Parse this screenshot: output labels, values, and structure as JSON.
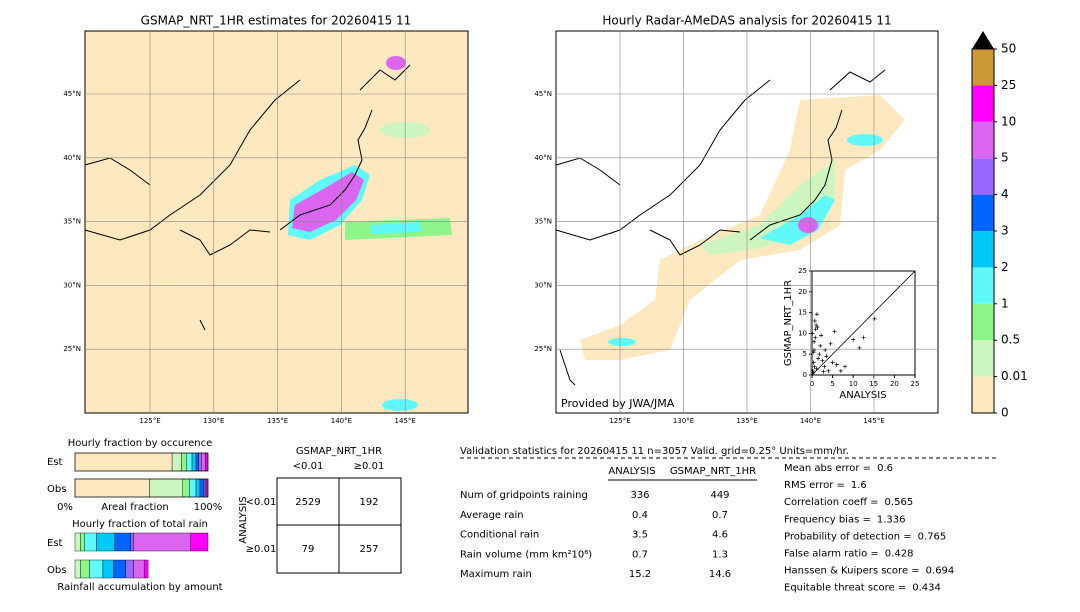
{
  "left_map": {
    "title": "GSMAP_NRT_1HR estimates for 20260415 11",
    "lat_labels": [
      "45°N",
      "40°N",
      "35°N",
      "30°N",
      "25°N"
    ],
    "lon_labels": [
      "125°E",
      "130°E",
      "135°E",
      "140°E",
      "145°E"
    ]
  },
  "right_map": {
    "title": "Hourly Radar-AMeDAS analysis for 20260415 11",
    "lat_labels": [
      "45°N",
      "40°N",
      "35°N",
      "30°N",
      "25°N"
    ],
    "lon_labels": [
      "125°E",
      "130°E",
      "135°E",
      "140°E",
      "145°E"
    ],
    "credit": "Provided by JWA/JMA"
  },
  "chart_data": {
    "type": "scatter",
    "x_label": "ANALYSIS",
    "y_label": "GSMAP_NRT_1HR",
    "xlim": [
      0,
      25
    ],
    "ylim": [
      0,
      25
    ],
    "xticks": [
      0,
      5,
      10,
      15,
      20,
      25
    ],
    "yticks": [
      0,
      5,
      10,
      15,
      20,
      25
    ],
    "color": "#000000",
    "x": [
      0.2,
      0.4,
      0.5,
      0.8,
      1.0,
      1.2,
      0.3,
      0.6,
      1.5,
      2.0,
      0.1,
      0.9,
      1.8,
      2.5,
      3.0,
      0.5,
      1.1,
      0.7,
      2.2,
      3.5,
      4.0,
      4.5,
      5.0,
      5.5,
      6.0,
      7.0,
      8.0,
      10.0,
      11.5,
      12.5,
      15.2,
      1.3,
      2.8,
      0.4,
      3.2
    ],
    "y": [
      1.0,
      3.0,
      6.0,
      9.0,
      12.0,
      14.6,
      0.5,
      2.0,
      4.0,
      7.0,
      10.0,
      11.0,
      5.0,
      3.5,
      2.0,
      8.0,
      1.5,
      13.0,
      9.5,
      4.5,
      1.0,
      7.5,
      3.0,
      10.5,
      2.5,
      1.0,
      2.0,
      8.5,
      6.5,
      9.0,
      13.5,
      11.5,
      0.8,
      5.5,
      6.0
    ]
  },
  "colorbar": {
    "levels": [
      0,
      0.01,
      0.5,
      1,
      2,
      3,
      4,
      5,
      10,
      25,
      50
    ],
    "colors": [
      "#fde8bf",
      "#ccf5c0",
      "#8ef58a",
      "#5ff9f9",
      "#00c8f8",
      "#0064ff",
      "#9966ff",
      "#da66f0",
      "#ff00ff",
      "#cc9933"
    ]
  },
  "occurrence": {
    "title": "Hourly fraction by occurence",
    "rows": [
      "Est",
      "Obs"
    ],
    "axis_labels": [
      "0%",
      "Areal fraction",
      "100%"
    ],
    "est": [
      0.73,
      0.07,
      0.04,
      0.04,
      0.03,
      0.02,
      0.02,
      0.03,
      0.02
    ],
    "obs": [
      0.56,
      0.25,
      0.05,
      0.05,
      0.03,
      0.03,
      0.01,
      0.01,
      0.01
    ]
  },
  "amount": {
    "title": "Hourly fraction of total rain",
    "rows": [
      "Est",
      "Obs"
    ],
    "x_label": "Rainfall accumulation by amount",
    "est": [
      0,
      0.04,
      0.03,
      0.09,
      0.14,
      0.12,
      0.02,
      0.43,
      0.13
    ],
    "obs": [
      0,
      0.04,
      0.07,
      0.1,
      0.08,
      0.09,
      0.06,
      0.08,
      0.03
    ]
  },
  "contingency": {
    "title": "GSMAP_NRT_1HR",
    "col_headers": [
      "<0.01",
      "≥0.01"
    ],
    "row_title": "ANALYSIS",
    "row_headers": [
      "<0.01",
      "≥0.01"
    ],
    "cells": [
      [
        2529,
        192
      ],
      [
        79,
        257
      ]
    ]
  },
  "validation": {
    "header": "Validation statistics for 20260415 11  n=3057 Valid. grid=0.25° Units=mm/hr.",
    "columns": [
      "ANALYSIS",
      "GSMAP_NRT_1HR"
    ],
    "rows": [
      {
        "label": "Num of gridpoints raining",
        "values": [
          336,
          449
        ]
      },
      {
        "label": "Average rain",
        "values": [
          0.4,
          0.7
        ]
      },
      {
        "label": "Conditional rain",
        "values": [
          3.5,
          4.6
        ]
      },
      {
        "label": "Rain volume (mm km²10⁶)",
        "values": [
          0.7,
          1.3
        ]
      },
      {
        "label": "Maximum rain",
        "values": [
          15.2,
          14.6
        ]
      }
    ],
    "scores": [
      {
        "label": "Mean abs error =",
        "value": 0.6
      },
      {
        "label": "RMS error =",
        "value": 1.6
      },
      {
        "label": "Correlation coeff =",
        "value": 0.565
      },
      {
        "label": "Frequency bias =",
        "value": 1.336
      },
      {
        "label": "Probability of detection =",
        "value": 0.765
      },
      {
        "label": "False alarm ratio =",
        "value": 0.428
      },
      {
        "label": "Hanssen & Kuipers score =",
        "value": 0.694
      },
      {
        "label": "Equitable threat score =",
        "value": 0.434
      }
    ]
  }
}
